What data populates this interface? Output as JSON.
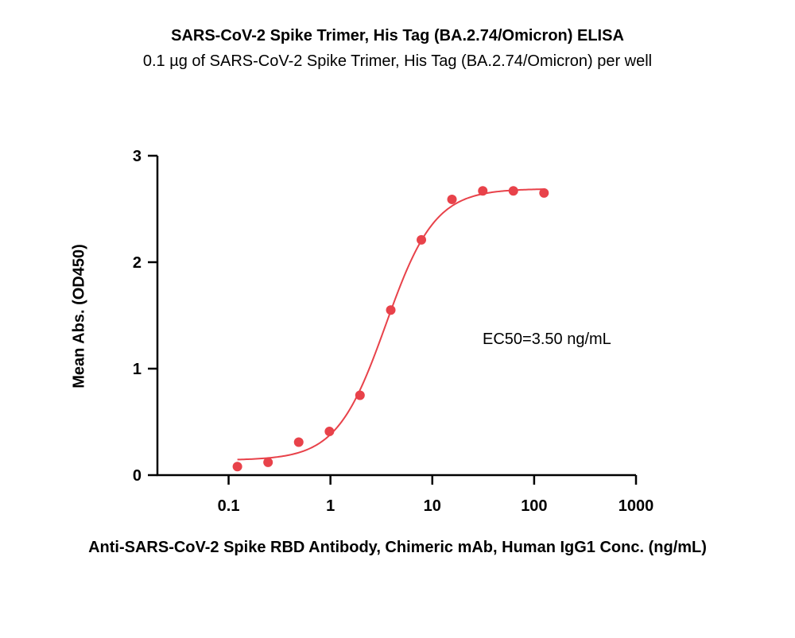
{
  "chart_data": {
    "type": "scatter",
    "title": "SARS-CoV-2 Spike Trimer, His Tag (BA.2.74/Omicron) ELISA",
    "subtitle": "0.1 µg of SARS-CoV-2 Spike Trimer, His Tag (BA.2.74/Omicron) per well",
    "xlabel": "Anti-SARS-CoV-2 Spike RBD Antibody, Chimeric mAb, Human IgG1 Conc. (ng/mL)",
    "ylabel": "Mean Abs. (OD450)",
    "x_scale": "log",
    "xlim": [
      0.02,
      1000
    ],
    "ylim": [
      0,
      3
    ],
    "x_ticks": [
      "0.1",
      "1",
      "10",
      "100",
      "1000"
    ],
    "y_ticks": [
      "0",
      "1",
      "2",
      "3"
    ],
    "annotation": "EC50=3.50 ng/mL",
    "color": "#e8424a",
    "series": [
      {
        "x": [
          0.122,
          0.244,
          0.488,
          0.977,
          1.95,
          3.91,
          7.81,
          15.6,
          31.3,
          62.5,
          125
        ],
        "y": [
          0.08,
          0.12,
          0.31,
          0.41,
          0.75,
          1.55,
          2.21,
          2.59,
          2.67,
          2.67,
          2.65
        ]
      }
    ],
    "fit": {
      "bottom": 0.14,
      "top": 2.69,
      "ec50": 3.5,
      "hill": 1.8
    }
  }
}
